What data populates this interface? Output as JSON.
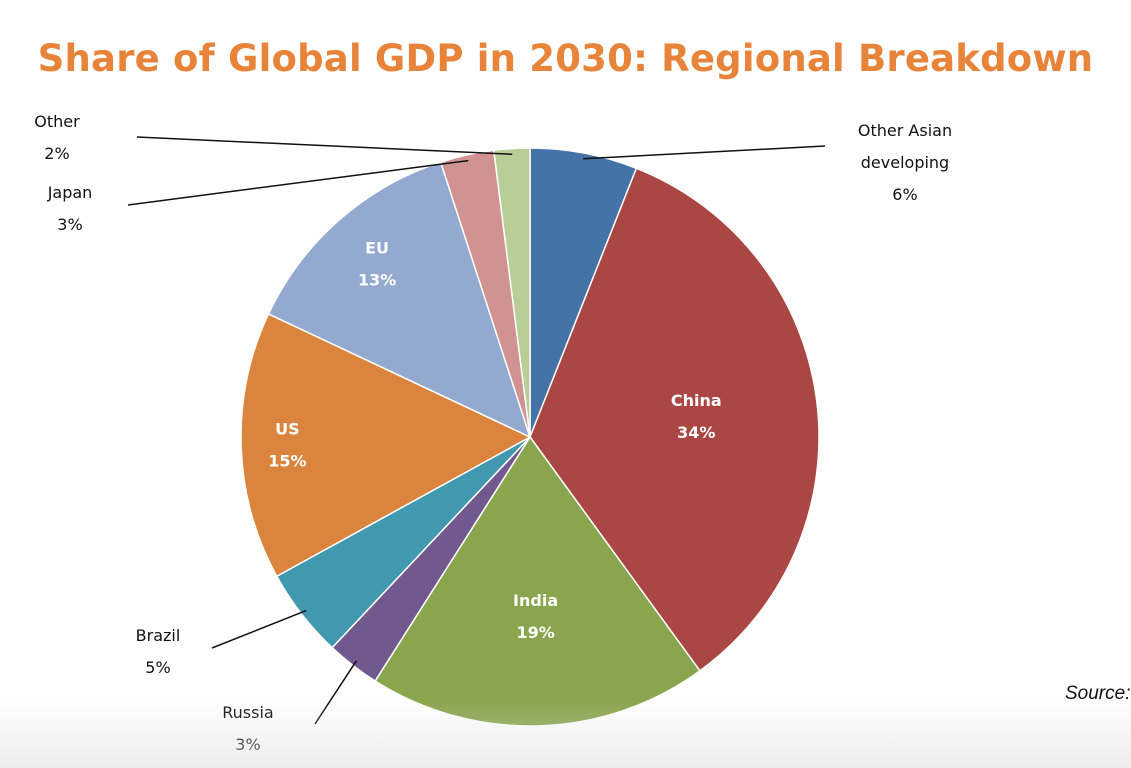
{
  "title": "Share of Global GDP in 2030: Regional Breakdown",
  "source_label": "Source:",
  "colors": {
    "title": "#E8833A"
  },
  "chart_data": {
    "type": "pie",
    "title": "Share of Global GDP in 2030: Regional Breakdown",
    "unit": "%",
    "start": "12 o'clock",
    "direction": "clockwise",
    "slices": [
      {
        "name": "Other Asian developing",
        "label_lines": [
          "Other Asian",
          "developing"
        ],
        "pct_label": "6%",
        "value": 6,
        "color": "#4572A7",
        "label_pos": "outside"
      },
      {
        "name": "China",
        "label_lines": [
          "China"
        ],
        "pct_label": "34%",
        "value": 34,
        "color": "#AA4643",
        "label_pos": "inside"
      },
      {
        "name": "India",
        "label_lines": [
          "India"
        ],
        "pct_label": "19%",
        "value": 19,
        "color": "#89A54E",
        "label_pos": "inside"
      },
      {
        "name": "Russia",
        "label_lines": [
          "Russia"
        ],
        "pct_label": "3%",
        "value": 3,
        "color": "#71588F",
        "label_pos": "outside"
      },
      {
        "name": "Brazil",
        "label_lines": [
          "Brazil"
        ],
        "pct_label": "5%",
        "value": 5,
        "color": "#4198AF",
        "label_pos": "outside"
      },
      {
        "name": "US",
        "label_lines": [
          "US"
        ],
        "pct_label": "15%",
        "value": 15,
        "color": "#DB843D",
        "label_pos": "inside"
      },
      {
        "name": "EU",
        "label_lines": [
          "EU"
        ],
        "pct_label": "13%",
        "value": 13,
        "color": "#93A9CF",
        "label_pos": "inside"
      },
      {
        "name": "Japan",
        "label_lines": [
          "Japan"
        ],
        "pct_label": "3%",
        "value": 3,
        "color": "#D19392",
        "label_pos": "outside"
      },
      {
        "name": "Other",
        "label_lines": [
          "Other"
        ],
        "pct_label": "2%",
        "value": 2,
        "color": "#B9CD96",
        "label_pos": "outside"
      }
    ]
  }
}
